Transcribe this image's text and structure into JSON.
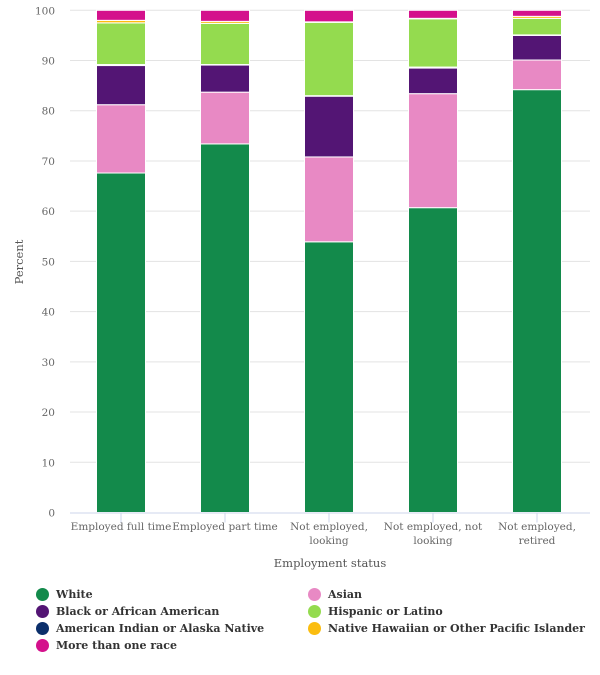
{
  "chart_data": {
    "type": "bar",
    "stacked": true,
    "title": "",
    "xlabel": "Employment status",
    "ylabel": "Percent",
    "ylim": [
      0,
      100
    ],
    "yticks": [
      0,
      10,
      20,
      30,
      40,
      50,
      60,
      70,
      80,
      90,
      100
    ],
    "grid": true,
    "legend_position": "bottom",
    "categories": [
      [
        "Employed full time"
      ],
      [
        "Employed part time"
      ],
      [
        "Not employed,",
        "looking"
      ],
      [
        "Not employed, not",
        "looking"
      ],
      [
        "Not employed,",
        "retired"
      ]
    ],
    "category_names": [
      "Employed full time",
      "Employed part time",
      "Not employed, looking",
      "Not employed, not looking",
      "Not employed, retired"
    ],
    "series": [
      {
        "name": "White",
        "color": "#138a4b",
        "values": [
          67.6,
          73.4,
          53.9,
          60.7,
          84.2
        ]
      },
      {
        "name": "Asian",
        "color": "#e889c4",
        "values": [
          13.6,
          10.3,
          16.9,
          22.7,
          5.9
        ]
      },
      {
        "name": "Black or African American",
        "color": "#531574",
        "values": [
          7.8,
          5.4,
          12.1,
          5.1,
          4.9
        ]
      },
      {
        "name": "American Indian or Alaska Native",
        "color": "#0b2f6b",
        "values": [
          0.2,
          0.1,
          0.1,
          0.2,
          0.1
        ]
      },
      {
        "name": "Hispanic or Latino",
        "color": "#94db4f",
        "values": [
          8.3,
          8.2,
          14.6,
          9.6,
          3.3
        ]
      },
      {
        "name": "Native Hawaiian or Other Pacific Islander",
        "color": "#fbbd10",
        "values": [
          0.5,
          0.4,
          0.1,
          0.1,
          0.4
        ]
      },
      {
        "name": "More than one race",
        "color": "#d4118c",
        "values": [
          2.0,
          2.2,
          2.3,
          1.6,
          1.2
        ]
      }
    ],
    "legend_order": [
      "White",
      "Asian",
      "Black or African American",
      "Hispanic or Latino",
      "American Indian or Alaska Native",
      "Native Hawaiian or Other Pacific Islander",
      "More than one race"
    ]
  }
}
